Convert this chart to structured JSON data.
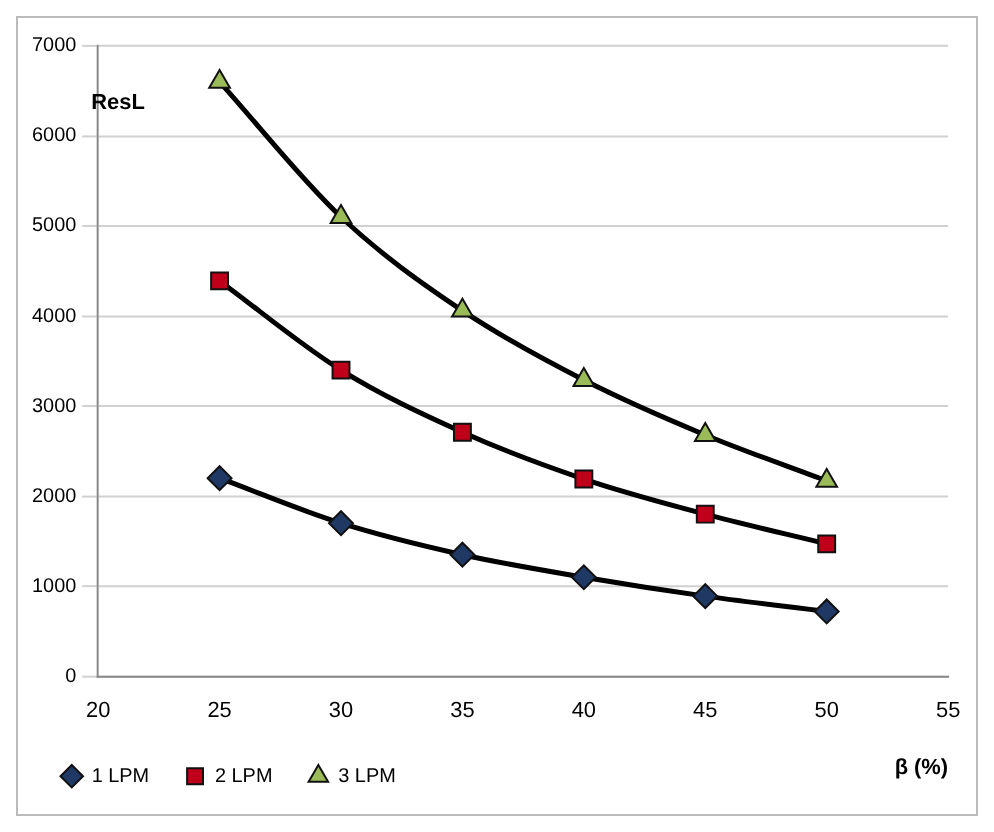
{
  "chart_data": {
    "type": "line",
    "xlabel": "β (%)",
    "ylabel": "ResL",
    "x": [
      25,
      30,
      35,
      40,
      45,
      50
    ],
    "series": [
      {
        "name": "1 LPM",
        "color": "#1f3864",
        "marker": "diamond",
        "values": [
          2200,
          1700,
          1350,
          1100,
          890,
          720
        ]
      },
      {
        "name": "2 LPM",
        "color": "#c0001a",
        "marker": "square",
        "values": [
          4390,
          3400,
          2710,
          2190,
          1800,
          1470
        ]
      },
      {
        "name": "3 LPM",
        "color": "#9bbb59",
        "marker": "triangle",
        "values": [
          6600,
          5100,
          4060,
          3290,
          2680,
          2170
        ]
      }
    ],
    "xlim": [
      20,
      55
    ],
    "xticks": [
      20,
      25,
      30,
      35,
      40,
      45,
      50,
      55
    ],
    "ylim": [
      0,
      7000
    ],
    "yticks": [
      0,
      1000,
      2000,
      3000,
      4000,
      5000,
      6000,
      7000
    ],
    "grid": "y",
    "legend": "bottom",
    "line_style": "solid"
  }
}
